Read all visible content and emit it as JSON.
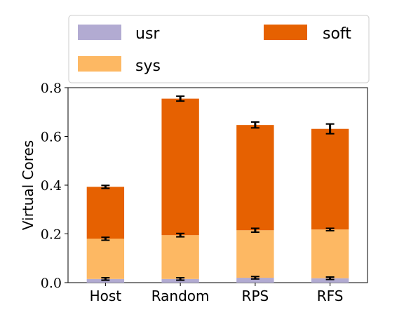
{
  "chart_data": {
    "type": "bar",
    "stacked": true,
    "categories": [
      "Host",
      "Random",
      "RPS",
      "RFS"
    ],
    "ylabel": "Virtual Cores",
    "xlabel": "",
    "ylim": [
      0,
      0.8
    ],
    "yticks": [
      "0.0",
      "0.2",
      "0.4",
      "0.6",
      "0.8"
    ],
    "grid": false,
    "legend_position": "top",
    "series": [
      {
        "name": "usr",
        "color": "#b2abd2",
        "values": [
          0.015,
          0.015,
          0.02,
          0.018
        ],
        "errors": [
          0.005,
          0.005,
          0.005,
          0.005
        ]
      },
      {
        "name": "sys",
        "color": "#fdb863",
        "values": [
          0.165,
          0.18,
          0.195,
          0.2
        ],
        "errors": [
          0.006,
          0.007,
          0.008,
          0.005
        ]
      },
      {
        "name": "soft",
        "color": "#e66101",
        "values": [
          0.213,
          0.56,
          0.432,
          0.413
        ],
        "errors": [
          0.006,
          0.01,
          0.012,
          0.02
        ]
      }
    ],
    "totals": [
      0.393,
      0.755,
      0.647,
      0.631
    ]
  }
}
